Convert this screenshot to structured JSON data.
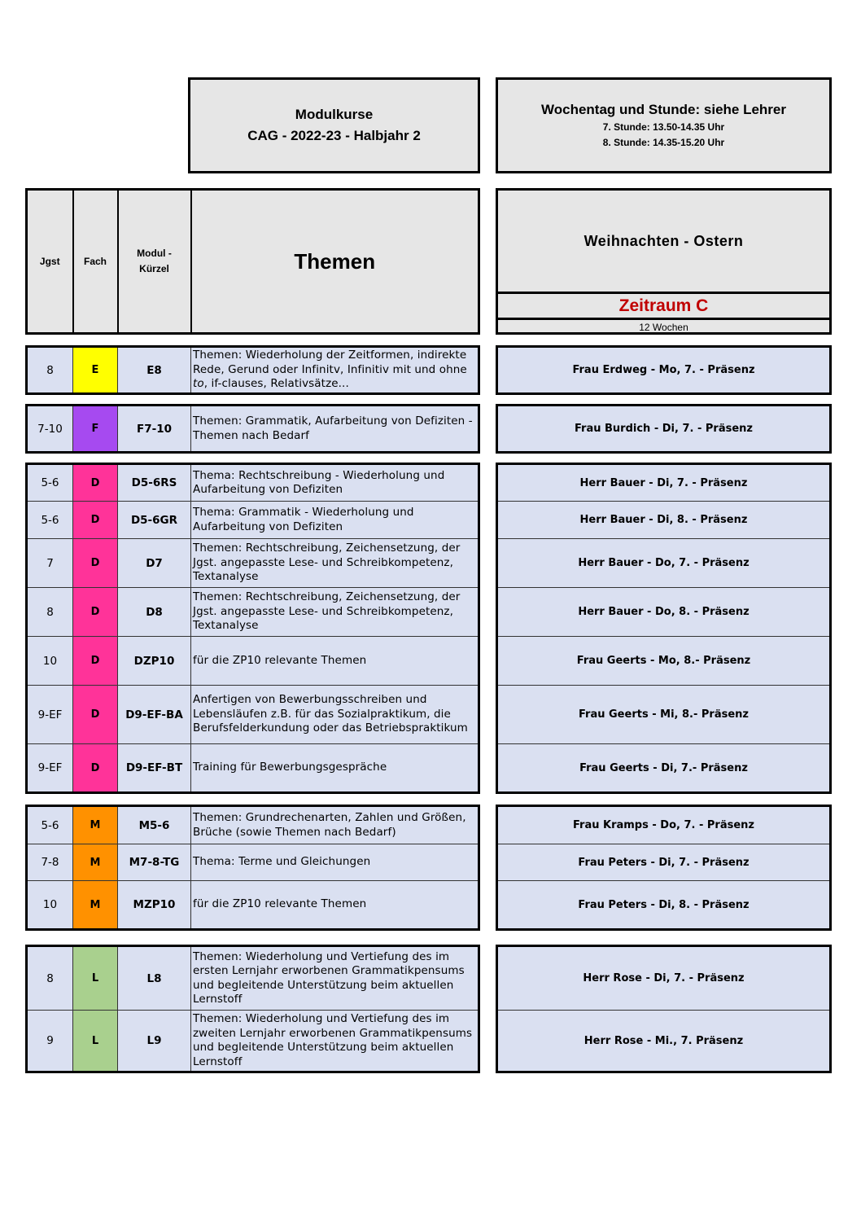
{
  "title_box": {
    "line1": "Modulkurse",
    "line2": "CAG  -  2022-23 -  Halbjahr 2"
  },
  "time_box": {
    "title": "Wochentag und Stunde: siehe Lehrer",
    "line1": "7. Stunde: 13.50-14.35 Uhr",
    "line2": "8. Stunde: 14.35-15.20 Uhr"
  },
  "headers": {
    "jgst": "Jgst",
    "fach": "Fach",
    "modul": "Modul - Kürzel",
    "themen": "Themen"
  },
  "period": {
    "title": "Weihnachten - Ostern",
    "zeitraum": "Zeitraum C",
    "duration": "12 Wochen",
    "zeitraum_color": "#c00000"
  },
  "colors": {
    "header_bg": "#e6e6e6",
    "row_bg": "#dae0f1"
  },
  "groups": [
    {
      "fach_color": "#ffff00",
      "rows": [
        {
          "jgst": "8",
          "fach": "E",
          "kuerzel": "E8",
          "themen_html": "Themen: Wiederholung der Zeitformen, indirekte Rede, Gerund oder Infinitv, Infinitiv mit und ohne |to|, if-clauses, Relativsätze...",
          "lehrer": "Frau Erdweg - Mo, 7. - Präsenz"
        }
      ]
    },
    {
      "fach_color": "#a64af0",
      "rows": [
        {
          "jgst": "7-10",
          "fach": "F",
          "kuerzel": "F7-10",
          "themen": "Themen: Grammatik, Aufarbeitung von Defiziten - Themen nach Bedarf",
          "lehrer": "Frau Burdich - Di, 7. - Präsenz"
        }
      ]
    },
    {
      "fach_color": "#ff3399",
      "rows": [
        {
          "jgst": "5-6",
          "fach": "D",
          "kuerzel": "D5-6RS",
          "themen": "Thema: Rechtschreibung - Wiederholung und Aufarbeitung von Defiziten",
          "lehrer": "Herr Bauer - Di, 7. - Präsenz"
        },
        {
          "jgst": "5-6",
          "fach": "D",
          "kuerzel": "D5-6GR",
          "themen": "Thema: Grammatik - Wiederholung und Aufarbeitung von Defiziten",
          "lehrer": "Herr Bauer - Di, 8. - Präsenz"
        },
        {
          "jgst": "7",
          "fach": "D",
          "kuerzel": "D7",
          "themen": "Themen: Rechtschreibung, Zeichensetzung, der Jgst. angepasste Lese- und Schreibkompetenz, Textanalyse",
          "lehrer": "Herr Bauer - Do, 7. - Präsenz"
        },
        {
          "jgst": "8",
          "fach": "D",
          "kuerzel": "D8",
          "themen": "Themen: Rechtschreibung, Zeichensetzung, der Jgst. angepasste Lese- und Schreibkompetenz, Textanalyse",
          "lehrer": "Herr Bauer - Do, 8. - Präsenz"
        },
        {
          "jgst": "10",
          "fach": "D",
          "kuerzel": "DZP10",
          "themen": "für die ZP10 relevante Themen",
          "lehrer": "Frau Geerts - Mo, 8.- Präsenz"
        },
        {
          "jgst": "9-EF",
          "fach": "D",
          "kuerzel": "D9-EF-BA",
          "themen": "Anfertigen von Bewerbungsschreiben und Lebensläufen z.B. für das Sozialpraktikum, die Berufsfelderkundung oder das Betriebspraktikum",
          "lehrer": "Frau Geerts - Mi, 8.- Präsenz"
        },
        {
          "jgst": "9-EF",
          "fach": "D",
          "kuerzel": "D9-EF-BT",
          "themen": "Training für Bewerbungsgespräche",
          "lehrer": "Frau Geerts - Di, 7.- Präsenz"
        }
      ]
    },
    {
      "fach_color": "#ff9100",
      "rows": [
        {
          "jgst": "5-6",
          "fach": "M",
          "kuerzel": "M5-6",
          "themen": "Themen: Grundrechenarten, Zahlen und Größen, Brüche (sowie Themen nach Bedarf)",
          "lehrer": "Frau Kramps - Do, 7. - Präsenz"
        },
        {
          "jgst": "7-8",
          "fach": "M",
          "kuerzel": "M7-8-TG",
          "themen": "Thema: Terme und Gleichungen",
          "lehrer": "Frau Peters - Di, 7. - Präsenz"
        },
        {
          "jgst": "10",
          "fach": "M",
          "kuerzel": "MZP10",
          "themen": "für die ZP10 relevante Themen",
          "lehrer": "Frau Peters - Di, 8. - Präsenz"
        }
      ]
    },
    {
      "fach_color": "#a9d08e",
      "rows": [
        {
          "jgst": "8",
          "fach": "L",
          "kuerzel": "L8",
          "themen": "Themen: Wiederholung und Vertiefung des im ersten Lernjahr erworbenen Grammatikpensums und begleitende Unterstützung beim aktuellen Lernstoff",
          "lehrer": "Herr Rose - Di, 7. - Präsenz"
        },
        {
          "jgst": "9",
          "fach": "L",
          "kuerzel": "L9",
          "themen": "Themen: Wiederholung und Vertiefung des im zweiten Lernjahr erworbenen Grammatikpensums und begleitende Unterstützung beim aktuellen Lernstoff",
          "lehrer": "Herr Rose - Mi., 7. Präsenz"
        }
      ]
    }
  ]
}
